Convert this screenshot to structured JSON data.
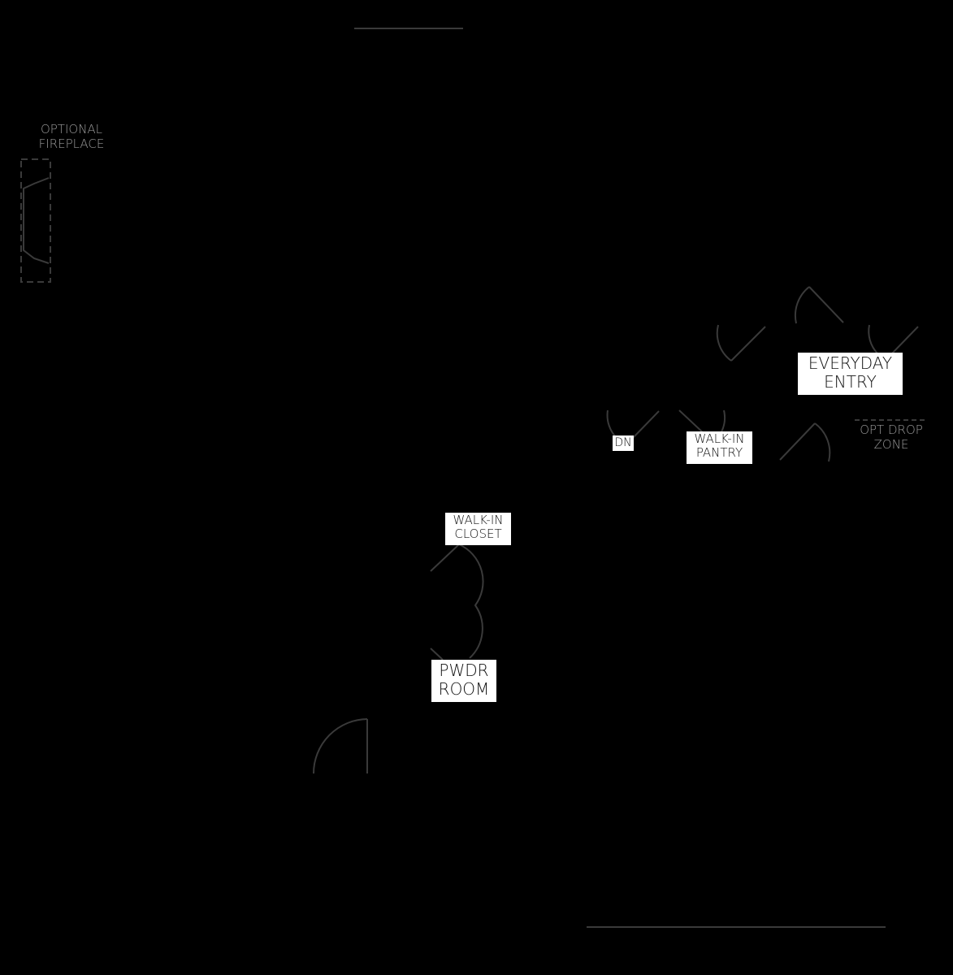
{
  "labels": {
    "optional_fireplace": [
      "OPTIONAL",
      "FIREPLACE"
    ],
    "everyday_entry": [
      "EVERYDAY",
      "ENTRY"
    ],
    "dn": "DN",
    "walk_in_pantry": [
      "WALK-IN",
      "PANTRY"
    ],
    "opt_drop_zone": [
      "OPT DROP",
      "ZONE"
    ],
    "walk_in_closet": [
      "WALK-IN",
      "CLOSET"
    ],
    "pwdr_room": [
      "PWDR",
      "ROOM"
    ]
  },
  "colors": {
    "background": "#000000",
    "lines": "#3a3a3a",
    "label_bg": "#ffffff",
    "gray_text": "#9a9a9a"
  }
}
